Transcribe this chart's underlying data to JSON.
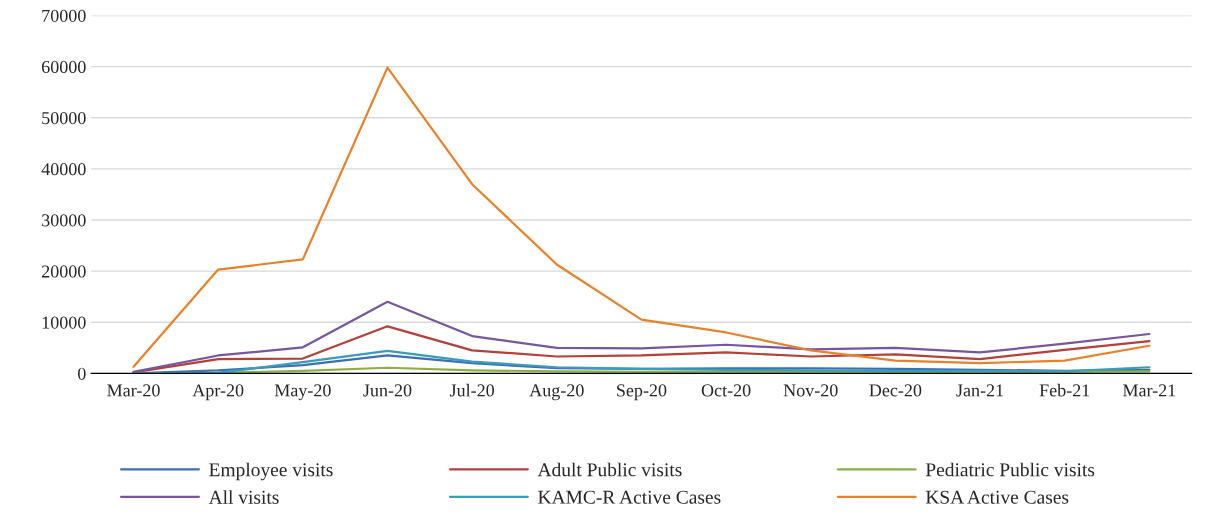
{
  "chart_data": {
    "type": "line",
    "categories": [
      "Mar-20",
      "Apr-20",
      "May-20",
      "Jun-20",
      "Jul-20",
      "Aug-20",
      "Sep-20",
      "Oct-20",
      "Nov-20",
      "Dec-20",
      "Jan-21",
      "Feb-21",
      "Mar-21"
    ],
    "series": [
      {
        "name": "Employee visits",
        "color": "#3b6fb6",
        "values": [
          0,
          600,
          1600,
          3500,
          2000,
          1000,
          900,
          1000,
          1000,
          900,
          700,
          500,
          700
        ]
      },
      {
        "name": "Adult Public visits",
        "color": "#b5403a",
        "values": [
          200,
          2800,
          2900,
          9200,
          4500,
          3300,
          3500,
          4100,
          3300,
          3700,
          2800,
          4600,
          6300
        ]
      },
      {
        "name": "Pediatric Public visits",
        "color": "#8cb043",
        "values": [
          0,
          100,
          500,
          1100,
          600,
          400,
          300,
          300,
          300,
          300,
          300,
          300,
          400
        ]
      },
      {
        "name": "All visits",
        "color": "#7756a0",
        "values": [
          300,
          3500,
          5100,
          14000,
          7300,
          5000,
          4900,
          5600,
          4700,
          5000,
          4100,
          5800,
          7700
        ]
      },
      {
        "name": "KAMC-R Active Cases",
        "color": "#3a9cb8",
        "values": [
          0,
          100,
          2200,
          4400,
          2300,
          1200,
          900,
          700,
          600,
          500,
          500,
          400,
          1200
        ]
      },
      {
        "name": "KSA Active Cases",
        "color": "#e8822a",
        "values": [
          1300,
          20300,
          22300,
          59800,
          37000,
          21300,
          10500,
          8000,
          4500,
          2500,
          2000,
          2500,
          5400
        ]
      }
    ],
    "ylim": [
      0,
      70000
    ],
    "yticks": [
      0,
      10000,
      20000,
      30000,
      40000,
      50000,
      60000,
      70000
    ],
    "grid": "y",
    "legend": "bottom",
    "marker": "none",
    "line_style": "solid"
  }
}
